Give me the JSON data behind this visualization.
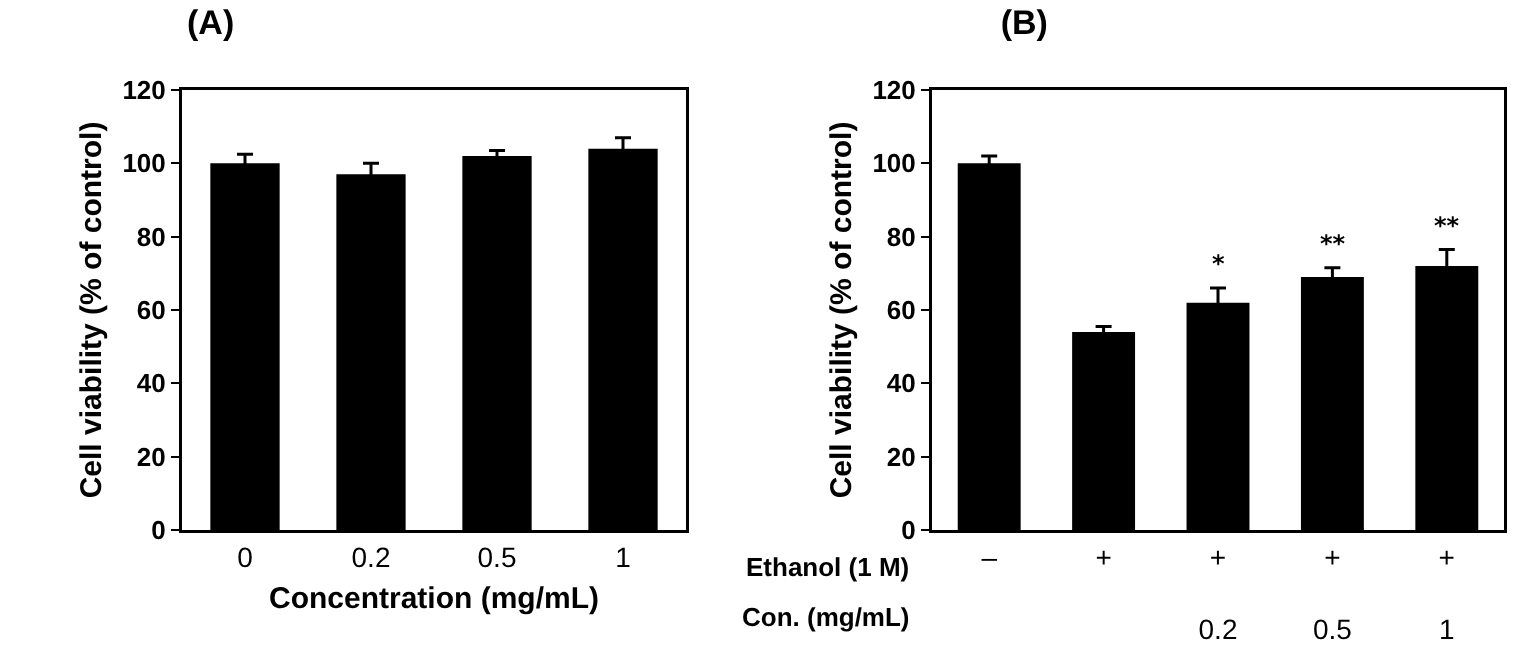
{
  "chart_data": [
    {
      "type": "bar",
      "title": "(A)",
      "xlabel": "Concentration (mg/mL)",
      "ylabel": "Cell viability (% of control)",
      "categories": [
        "0",
        "0.2",
        "0.5",
        "1"
      ],
      "values": [
        100,
        97,
        102,
        104
      ],
      "errors": [
        2.5,
        3,
        1.5,
        3
      ],
      "color": "#000000",
      "ylim": [
        0,
        120
      ],
      "yticks": [
        0,
        20,
        40,
        60,
        80,
        100,
        120
      ],
      "grid": false
    },
    {
      "type": "bar",
      "title": "(B)",
      "ylabel": "Cell viability (% of control)",
      "categories": [
        "–\n",
        "+\n",
        "+\n0.2",
        "+\n0.5",
        "+\n1"
      ],
      "values": [
        100,
        54,
        62,
        69,
        72
      ],
      "errors": [
        2,
        1.5,
        4,
        2.5,
        4.5
      ],
      "color": "#000000",
      "value_labels": [
        null,
        null,
        "*",
        "**",
        "**"
      ],
      "annotations": [
        "Ethanol (1 M)",
        "Con. (mg/mL)"
      ],
      "ylim": [
        0,
        120
      ],
      "yticks": [
        0,
        20,
        40,
        60,
        80,
        100,
        120
      ],
      "grid": false
    }
  ]
}
